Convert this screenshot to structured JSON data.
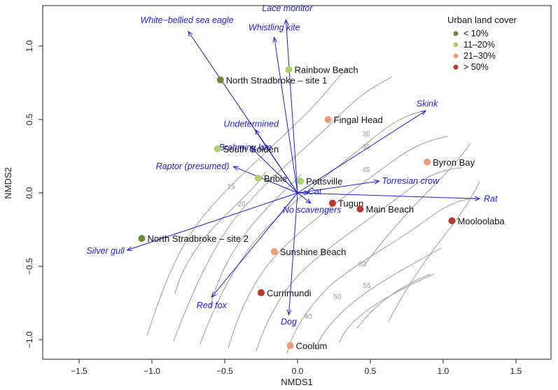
{
  "chart_data": {
    "type": "scatter",
    "xlabel": "NMDS1",
    "ylabel": "NMDS2",
    "xlim": [
      -1.8,
      1.8
    ],
    "ylim": [
      -1.2,
      1.25
    ],
    "x_ticks": [
      -1.5,
      -1.0,
      -0.5,
      0.0,
      0.5,
      1.0,
      1.5
    ],
    "y_ticks": [
      -1.0,
      -0.5,
      0.0,
      0.5,
      1.0
    ],
    "x_tick_labels": [
      "−1.5",
      "−1.0",
      "−0.5",
      "0.0",
      "0.5",
      "1.0",
      "1.5"
    ],
    "y_tick_labels": [
      "−1.0",
      "−0.5",
      "0.0",
      "0.5",
      "1.0"
    ],
    "grid": false,
    "legend": {
      "title": "Urban land cover",
      "placement": "top-right",
      "entries": [
        {
          "label": "< 10%",
          "color": "#6f8740"
        },
        {
          "label": "11–20%",
          "color": "#aed06a"
        },
        {
          "label": "21–30%",
          "color": "#e89e78"
        },
        {
          "label": "> 50%",
          "color": "#b53a33"
        }
      ]
    },
    "sites": [
      {
        "name": "Rainbow Beach",
        "x": -0.06,
        "y": 0.84,
        "group": 1
      },
      {
        "name": "North Stradbroke – site 1",
        "x": -0.53,
        "y": 0.77,
        "group": 0
      },
      {
        "name": "Fingal Head",
        "x": 0.21,
        "y": 0.5,
        "group": 2
      },
      {
        "name": "South Golden",
        "x": -0.55,
        "y": 0.3,
        "group": 1
      },
      {
        "name": "Byron Bay",
        "x": 0.89,
        "y": 0.21,
        "group": 2
      },
      {
        "name": "Bribie",
        "x": -0.27,
        "y": 0.1,
        "group": 1
      },
      {
        "name": "Pottsville",
        "x": 0.02,
        "y": 0.08,
        "group": 1
      },
      {
        "name": "Tugun",
        "x": 0.24,
        "y": -0.07,
        "group": 3
      },
      {
        "name": "Main Beach",
        "x": 0.43,
        "y": -0.11,
        "group": 3
      },
      {
        "name": "Mooloolaba",
        "x": 1.06,
        "y": -0.19,
        "group": 3
      },
      {
        "name": "North Stradbroke – site 2",
        "x": -1.07,
        "y": -0.31,
        "group": 0
      },
      {
        "name": "Sunshine Beach",
        "x": -0.16,
        "y": -0.4,
        "group": 2
      },
      {
        "name": "Currimundi",
        "x": -0.25,
        "y": -0.68,
        "group": 3
      },
      {
        "name": "Coolum",
        "x": -0.05,
        "y": -1.04,
        "group": 2
      }
    ],
    "species": [
      {
        "name": "White−bellied sea eagle",
        "x": -0.75,
        "y": 1.1
      },
      {
        "name": "Lace monitor",
        "x": -0.08,
        "y": 1.18
      },
      {
        "name": "Whistling kite",
        "x": -0.16,
        "y": 1.06
      },
      {
        "name": "Skink",
        "x": 0.88,
        "y": 0.56
      },
      {
        "name": "Undetermined",
        "x": -0.29,
        "y": 0.43
      },
      {
        "name": "Brahminy kite",
        "x": -0.32,
        "y": 0.31
      },
      {
        "name": "Raptor (presumed)",
        "x": -0.44,
        "y": 0.18
      },
      {
        "name": "Torresian crow",
        "x": 0.56,
        "y": 0.08
      },
      {
        "name": "Cat",
        "x": 0.08,
        "y": 0.0
      },
      {
        "name": "No scavengers",
        "x": 0.09,
        "y": -0.07
      },
      {
        "name": "Rat",
        "x": 1.25,
        "y": -0.04
      },
      {
        "name": "Silver gull",
        "x": -1.17,
        "y": -0.39
      },
      {
        "name": "Red fox",
        "x": -0.59,
        "y": -0.71
      },
      {
        "name": "Dog",
        "x": -0.06,
        "y": -0.83
      }
    ],
    "contour_levels": [
      "15",
      "20",
      "30",
      "35",
      "40",
      "45",
      "50",
      "55",
      "60"
    ]
  }
}
